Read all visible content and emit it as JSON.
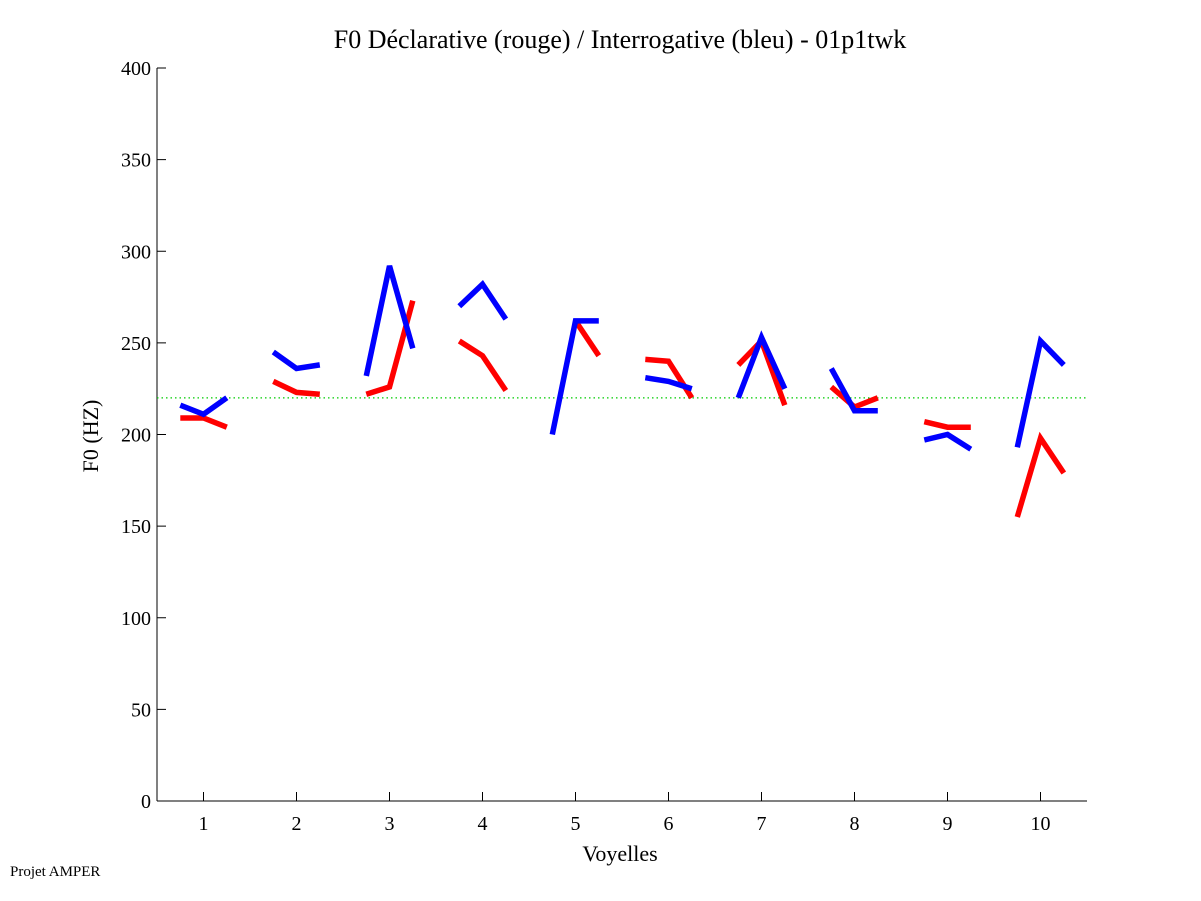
{
  "credit": "Projet AMPER",
  "chart_data": {
    "type": "line",
    "title": "F0 Déclarative (rouge) / Interrogative (bleu) - 01p1twk",
    "xlabel": "Voyelles",
    "ylabel": "F0 (HZ)",
    "xlim": [
      0.5,
      10.5
    ],
    "ylim": [
      0,
      400
    ],
    "x_ticks": [
      1,
      2,
      3,
      4,
      5,
      6,
      7,
      8,
      9,
      10
    ],
    "x_tick_labels": [
      "1",
      "2",
      "3",
      "4",
      "5",
      "6",
      "7",
      "8",
      "9",
      "10"
    ],
    "y_ticks": [
      0,
      50,
      100,
      150,
      200,
      250,
      300,
      350,
      400
    ],
    "y_tick_labels": [
      "0",
      "50",
      "100",
      "150",
      "200",
      "250",
      "300",
      "350",
      "400"
    ],
    "reference_line": {
      "y": 220,
      "color": "#00cc00",
      "style": "dotted"
    },
    "segment_offsets": [
      -0.25,
      0,
      0.25
    ],
    "series": [
      {
        "name": "Déclarative (rouge)",
        "color": "#ff0000",
        "vowels": [
          [
            209,
            209,
            204
          ],
          [
            229,
            223,
            222
          ],
          [
            222,
            226,
            273
          ],
          [
            251,
            243,
            224
          ],
          [
            null,
            262,
            243
          ],
          [
            241,
            240,
            220
          ],
          [
            238,
            251,
            216
          ],
          [
            226,
            215,
            220
          ],
          [
            207,
            204,
            204
          ],
          [
            155,
            198,
            179
          ]
        ]
      },
      {
        "name": "Interrogative (bleu)",
        "color": "#0000ff",
        "vowels": [
          [
            216,
            211,
            220
          ],
          [
            245,
            236,
            238
          ],
          [
            232,
            292,
            247
          ],
          [
            270,
            282,
            263
          ],
          [
            200,
            262,
            262
          ],
          [
            231,
            229,
            225
          ],
          [
            220,
            253,
            225
          ],
          [
            236,
            213,
            213
          ],
          [
            197,
            200,
            192
          ],
          [
            193,
            251,
            238
          ]
        ]
      }
    ]
  }
}
